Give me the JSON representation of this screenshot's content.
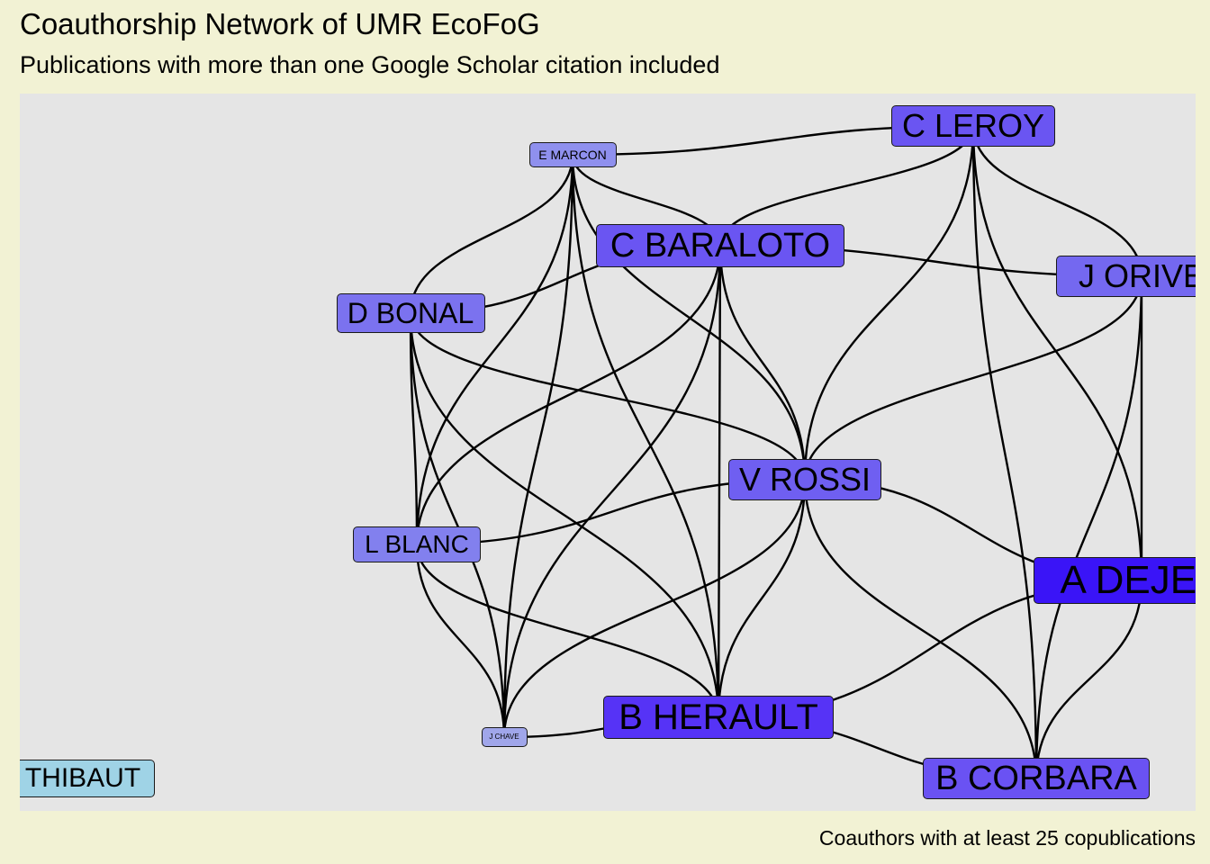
{
  "title": "Coauthorship Network of UMR EcoFoG",
  "subtitle": "Publications with more than one Google Scholar citation included",
  "caption": "Coauthors with at least 25 copublications",
  "colors": {
    "page_background": "#f2f2d4",
    "panel_background": "#e5e5e5",
    "edge": "#000000"
  },
  "nodes": [
    {
      "id": "c_leroy",
      "label": "C LEROY",
      "fill": "#6a55f2"
    },
    {
      "id": "e_marcon",
      "label": "E MARCON",
      "fill": "#8f90ee"
    },
    {
      "id": "c_baraloto",
      "label": "C BARALOTO",
      "fill": "#6a55f2"
    },
    {
      "id": "j_orivel",
      "label": "J ORIVE",
      "fill": "#7468f0"
    },
    {
      "id": "d_bonal",
      "label": "D BONAL",
      "fill": "#7b72ef"
    },
    {
      "id": "v_rossi",
      "label": "V ROSSI",
      "fill": "#6f5ff1"
    },
    {
      "id": "l_blanc",
      "label": "L BLANC",
      "fill": "#8280ee"
    },
    {
      "id": "a_dejean",
      "label": "A DEJEA",
      "fill": "#3a14f7"
    },
    {
      "id": "j_chave",
      "label": "J CHAVE",
      "fill": "#a0a6ea"
    },
    {
      "id": "b_herault",
      "label": "B HERAULT",
      "fill": "#5633f6"
    },
    {
      "id": "b_corbara",
      "label": "B CORBARA",
      "fill": "#6a52f3"
    },
    {
      "id": "thibaut",
      "label": "THIBAUT",
      "fill": "#9fd3e6"
    }
  ],
  "edges": [
    [
      "e_marcon",
      "c_leroy"
    ],
    [
      "e_marcon",
      "c_baraloto"
    ],
    [
      "e_marcon",
      "d_bonal"
    ],
    [
      "e_marcon",
      "v_rossi"
    ],
    [
      "e_marcon",
      "l_blanc"
    ],
    [
      "e_marcon",
      "b_herault"
    ],
    [
      "e_marcon",
      "j_chave"
    ],
    [
      "c_leroy",
      "c_baraloto"
    ],
    [
      "c_leroy",
      "j_orivel"
    ],
    [
      "c_leroy",
      "v_rossi"
    ],
    [
      "c_leroy",
      "a_dejean"
    ],
    [
      "c_leroy",
      "b_corbara"
    ],
    [
      "c_baraloto",
      "j_orivel"
    ],
    [
      "c_baraloto",
      "d_bonal"
    ],
    [
      "c_baraloto",
      "v_rossi"
    ],
    [
      "c_baraloto",
      "l_blanc"
    ],
    [
      "c_baraloto",
      "b_herault"
    ],
    [
      "c_baraloto",
      "j_chave"
    ],
    [
      "j_orivel",
      "v_rossi"
    ],
    [
      "j_orivel",
      "a_dejean"
    ],
    [
      "j_orivel",
      "b_corbara"
    ],
    [
      "d_bonal",
      "v_rossi"
    ],
    [
      "d_bonal",
      "l_blanc"
    ],
    [
      "d_bonal",
      "b_herault"
    ],
    [
      "d_bonal",
      "j_chave"
    ],
    [
      "v_rossi",
      "l_blanc"
    ],
    [
      "v_rossi",
      "a_dejean"
    ],
    [
      "v_rossi",
      "b_herault"
    ],
    [
      "v_rossi",
      "j_chave"
    ],
    [
      "v_rossi",
      "b_corbara"
    ],
    [
      "l_blanc",
      "b_herault"
    ],
    [
      "l_blanc",
      "j_chave"
    ],
    [
      "a_dejean",
      "b_herault"
    ],
    [
      "a_dejean",
      "b_corbara"
    ],
    [
      "b_herault",
      "j_chave"
    ],
    [
      "b_herault",
      "b_corbara"
    ]
  ]
}
